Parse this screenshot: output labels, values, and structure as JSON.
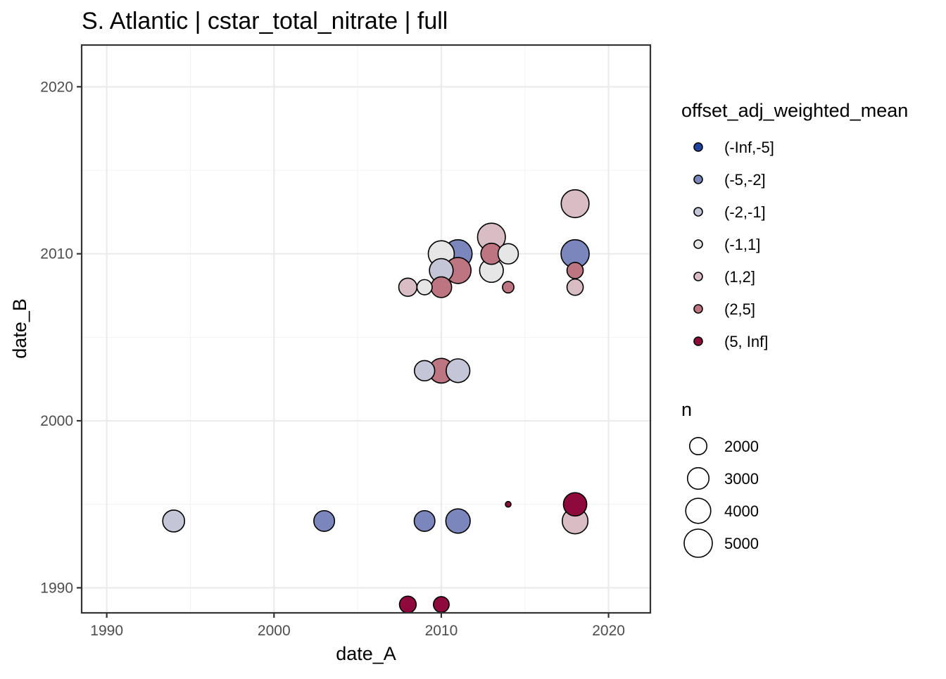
{
  "chart_data": {
    "type": "scatter",
    "title": "S. Atlantic | cstar_total_nitrate | full",
    "xlabel": "date_A",
    "ylabel": "date_B",
    "xlim": [
      1988.5,
      2022.5
    ],
    "ylim": [
      1988.5,
      2022.5
    ],
    "xticks": [
      1990,
      2000,
      2010,
      2020
    ],
    "yticks": [
      1990,
      2000,
      2010,
      2020
    ],
    "grid": true,
    "legend_position": "right",
    "color_legend": {
      "title": "offset_adj_weighted_mean",
      "items": [
        {
          "label": "(-Inf,-5]",
          "color": "#1f43a0"
        },
        {
          "label": "(-5,-2]",
          "color": "#7b86bd"
        },
        {
          "label": "(-2,-1]",
          "color": "#c4c6d8"
        },
        {
          "label": "(-1,1]",
          "color": "#e6e6e6"
        },
        {
          "label": "(1,2]",
          "color": "#d8bdc4"
        },
        {
          "label": "(2,5]",
          "color": "#bd7582"
        },
        {
          "label": "(5, Inf]",
          "color": "#8f0a3c"
        }
      ]
    },
    "size_legend": {
      "title": "n",
      "items": [
        {
          "label": "2000",
          "value": 2000
        },
        {
          "label": "3000",
          "value": 3000
        },
        {
          "label": "4000",
          "value": 4000
        },
        {
          "label": "5000",
          "value": 5000
        }
      ]
    },
    "points": [
      {
        "x": 1994,
        "y": 1994,
        "n": 3100,
        "category": "(-2,-1]"
      },
      {
        "x": 2003,
        "y": 1994,
        "n": 2800,
        "category": "(-5,-2]"
      },
      {
        "x": 2009,
        "y": 1994,
        "n": 2800,
        "category": "(-5,-2]"
      },
      {
        "x": 2011,
        "y": 1994,
        "n": 3800,
        "category": "(-5,-2]"
      },
      {
        "x": 2014,
        "y": 1995,
        "n": 400,
        "category": "(5, Inf]"
      },
      {
        "x": 2018,
        "y": 1995,
        "n": 3500,
        "category": "(5, Inf]"
      },
      {
        "x": 2018,
        "y": 1994,
        "n": 4200,
        "category": "(1,2]"
      },
      {
        "x": 2008,
        "y": 1989,
        "n": 1900,
        "category": "(5, Inf]"
      },
      {
        "x": 2010,
        "y": 1989,
        "n": 1700,
        "category": "(5, Inf]"
      },
      {
        "x": 2009,
        "y": 2003,
        "n": 2700,
        "category": "(-2,-1]"
      },
      {
        "x": 2010,
        "y": 2003,
        "n": 3900,
        "category": "(2,5]"
      },
      {
        "x": 2011,
        "y": 2003,
        "n": 3600,
        "category": "(-2,-1]"
      },
      {
        "x": 2008,
        "y": 2008,
        "n": 2200,
        "category": "(1,2]"
      },
      {
        "x": 2009,
        "y": 2008,
        "n": 1600,
        "category": "(-1,1]"
      },
      {
        "x": 2010,
        "y": 2008,
        "n": 2800,
        "category": "(2,5]"
      },
      {
        "x": 2010,
        "y": 2009,
        "n": 3600,
        "category": "(-2,-1]"
      },
      {
        "x": 2010,
        "y": 2010,
        "n": 4300,
        "category": "(-1,1]"
      },
      {
        "x": 2011,
        "y": 2010,
        "n": 5000,
        "category": "(-5,-2]"
      },
      {
        "x": 2011,
        "y": 2009,
        "n": 4300,
        "category": "(2,5]"
      },
      {
        "x": 2013,
        "y": 2011,
        "n": 4900,
        "category": "(1,2]"
      },
      {
        "x": 2013,
        "y": 2010,
        "n": 2900,
        "category": "(2,5]"
      },
      {
        "x": 2013,
        "y": 2009,
        "n": 3600,
        "category": "(-1,1]"
      },
      {
        "x": 2014,
        "y": 2010,
        "n": 2700,
        "category": "(-1,1]"
      },
      {
        "x": 2014,
        "y": 2008,
        "n": 1000,
        "category": "(2,5]"
      },
      {
        "x": 2018,
        "y": 2013,
        "n": 4900,
        "category": "(1,2]"
      },
      {
        "x": 2018,
        "y": 2010,
        "n": 5000,
        "category": "(-5,-2]"
      },
      {
        "x": 2018,
        "y": 2009,
        "n": 1800,
        "category": "(2,5]"
      },
      {
        "x": 2018,
        "y": 2008,
        "n": 1800,
        "category": "(1,2]"
      }
    ]
  }
}
